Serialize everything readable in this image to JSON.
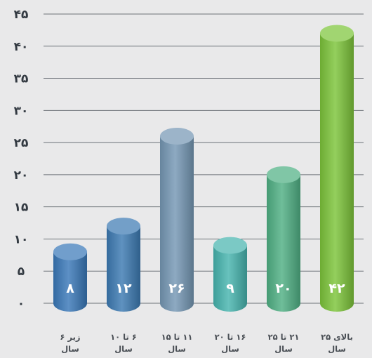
{
  "chart_data": {
    "type": "bar",
    "categories": [
      [
        "زیر ۶",
        "سال"
      ],
      [
        "۶ تا ۱۰",
        "سال"
      ],
      [
        "۱۱ تا ۱۵",
        "سال"
      ],
      [
        "۱۶ تا ۲۰",
        "سال"
      ],
      [
        "۲۱ تا ۲۵",
        "سال"
      ],
      [
        "بالای ۲۵",
        "سال"
      ]
    ],
    "values": [
      8,
      12,
      26,
      9,
      20,
      42
    ],
    "value_labels": [
      "۸",
      "۱۲",
      "۲۶",
      "۹",
      "۲۰",
      "۴۲"
    ],
    "ylim": [
      0,
      45
    ],
    "yticks": [
      0,
      5,
      10,
      15,
      20,
      25,
      30,
      35,
      40,
      45
    ],
    "ytick_labels": [
      "۰",
      "۵",
      "۱۰",
      "۱۵",
      "۲۰",
      "۲۵",
      "۳۰",
      "۳۵",
      "۴۰",
      "۴۵"
    ],
    "grid": true,
    "colors": [
      "#3a78b8",
      "#3c7ab2",
      "#7597b4",
      "#47b4ae",
      "#4fb084",
      "#7cc43a"
    ]
  }
}
